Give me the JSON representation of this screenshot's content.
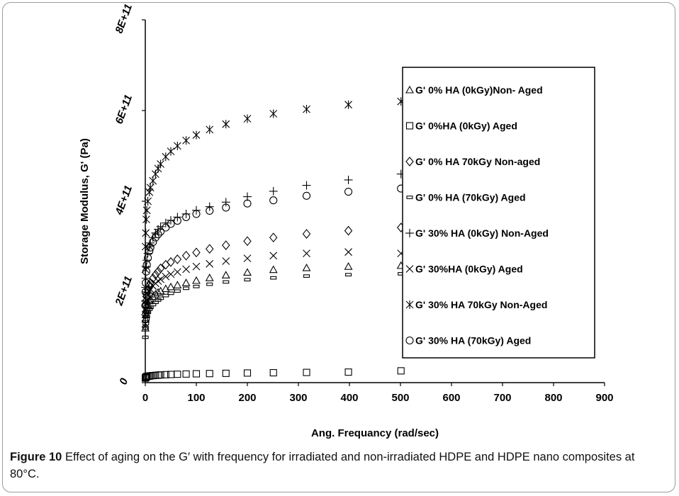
{
  "chart_data": {
    "type": "scatter",
    "xlabel": "Ang. Frequancy (rad/sec)",
    "ylabel": "Storage Modulus, G' (Pa)",
    "xlim": [
      0,
      900
    ],
    "ylim": [
      0,
      800000000000
    ],
    "x_ticks": [
      "0",
      "100",
      "200",
      "300",
      "400",
      "500",
      "600",
      "700",
      "800",
      "900"
    ],
    "y_ticks": [
      "0",
      "2E+11",
      "4E+11",
      "6E+11",
      "8E+11"
    ],
    "grid": false,
    "legend_position": "right",
    "x": [
      0.1,
      0.5,
      1,
      2,
      3,
      5,
      8,
      10,
      15,
      20,
      25,
      30,
      40,
      50,
      63,
      80,
      100,
      126,
      158,
      200,
      251,
      316,
      398,
      501
    ],
    "series": [
      {
        "name": "G' 0% HA (0kGy)Non- Aged",
        "marker": "triangle",
        "values": [
          120000000000.0,
          140000000000.0,
          150000000000.0,
          160000000000.0,
          165000000000.0,
          172000000000.0,
          180000000000.0,
          184000000000.0,
          190000000000.0,
          195000000000.0,
          199000000000.0,
          202000000000.0,
          207000000000.0,
          211000000000.0,
          215000000000.0,
          220000000000.0,
          225000000000.0,
          231000000000.0,
          237000000000.0,
          243000000000.0,
          249000000000.0,
          253000000000.0,
          256000000000.0,
          258000000000.0
        ]
      },
      {
        "name": "G' 0%HA  (0kGy) Aged",
        "marker": "square",
        "values": [
          10000000000.0,
          11000000000.0,
          12000000000.0,
          13000000000.0,
          13500000000.0,
          14000000000.0,
          14500000000.0,
          15000000000.0,
          15500000000.0,
          16000000000.0,
          16500000000.0,
          17000000000.0,
          17500000000.0,
          18000000000.0,
          18500000000.0,
          19000000000.0,
          19500000000.0,
          20000000000.0,
          20500000000.0,
          21200000000.0,
          21800000000.0,
          22500000000.0,
          23200000000.0,
          26000000000.0
        ]
      },
      {
        "name": "G' 0% HA 70kGy Non-aged",
        "marker": "diamond",
        "values": [
          150000000000.0,
          170000000000.0,
          180000000000.0,
          190000000000.0,
          196000000000.0,
          205000000000.0,
          215000000000.0,
          220000000000.0,
          230000000000.0,
          238000000000.0,
          245000000000.0,
          252000000000.0,
          260000000000.0,
          266000000000.0,
          272000000000.0,
          280000000000.0,
          287000000000.0,
          295000000000.0,
          303000000000.0,
          312000000000.0,
          320000000000.0,
          328000000000.0,
          335000000000.0,
          342000000000.0
        ]
      },
      {
        "name": "G' 0% HA (70kGy) Aged",
        "marker": "dash",
        "values": [
          100000000000.0,
          120000000000.0,
          130000000000.0,
          140000000000.0,
          146000000000.0,
          155000000000.0,
          162000000000.0,
          166000000000.0,
          172000000000.0,
          177000000000.0,
          182000000000.0,
          186000000000.0,
          192000000000.0,
          197000000000.0,
          202000000000.0,
          208000000000.0,
          212000000000.0,
          217000000000.0,
          222000000000.0,
          227000000000.0,
          231000000000.0,
          235000000000.0,
          238000000000.0,
          240000000000.0
        ]
      },
      {
        "name": "G' 30% HA (0kGy) Non-Aged",
        "marker": "plus",
        "values": [
          180000000000.0,
          210000000000.0,
          230000000000.0,
          255000000000.0,
          270000000000.0,
          285000000000.0,
          300000000000.0,
          308000000000.0,
          320000000000.0,
          330000000000.0,
          338000000000.0,
          344000000000.0,
          352000000000.0,
          358000000000.0,
          365000000000.0,
          372000000000.0,
          380000000000.0,
          388000000000.0,
          398000000000.0,
          410000000000.0,
          422000000000.0,
          435000000000.0,
          447000000000.0,
          460000000000.0
        ]
      },
      {
        "name": "G' 30%HA (0kGy) Aged",
        "marker": "x",
        "values": [
          130000000000.0,
          150000000000.0,
          162000000000.0,
          175000000000.0,
          183000000000.0,
          193000000000.0,
          202000000000.0,
          206000000000.0,
          213000000000.0,
          219000000000.0,
          224000000000.0,
          228000000000.0,
          234000000000.0,
          239000000000.0,
          244000000000.0,
          250000000000.0,
          256000000000.0,
          262000000000.0,
          268000000000.0,
          274000000000.0,
          280000000000.0,
          285000000000.0,
          288000000000.0,
          285000000000.0
        ]
      },
      {
        "name": "G' 30% HA 70kGy Non-Aged",
        "marker": "star",
        "values": [
          250000000000.0,
          300000000000.0,
          330000000000.0,
          360000000000.0,
          380000000000.0,
          400000000000.0,
          420000000000.0,
          430000000000.0,
          445000000000.0,
          460000000000.0,
          472000000000.0,
          482000000000.0,
          498000000000.0,
          510000000000.0,
          522000000000.0,
          534000000000.0,
          546000000000.0,
          558000000000.0,
          570000000000.0,
          582000000000.0,
          593000000000.0,
          603000000000.0,
          613000000000.0,
          620000000000.0
        ]
      },
      {
        "name": "G' 30% HA (70kGy)  Aged",
        "marker": "circle",
        "values": [
          170000000000.0,
          200000000000.0,
          220000000000.0,
          245000000000.0,
          260000000000.0,
          275000000000.0,
          290000000000.0,
          298000000000.0,
          310000000000.0,
          320000000000.0,
          327000000000.0,
          333000000000.0,
          342000000000.0,
          350000000000.0,
          357000000000.0,
          365000000000.0,
          372000000000.0,
          379000000000.0,
          386000000000.0,
          395000000000.0,
          402000000000.0,
          412000000000.0,
          421000000000.0,
          428000000000.0
        ]
      }
    ]
  },
  "caption": {
    "label": "Figure 10",
    "text": " Effect of aging on the G′ with frequency for irradiated and non-irradiated HDPE and HDPE nano composites at 80°C."
  }
}
